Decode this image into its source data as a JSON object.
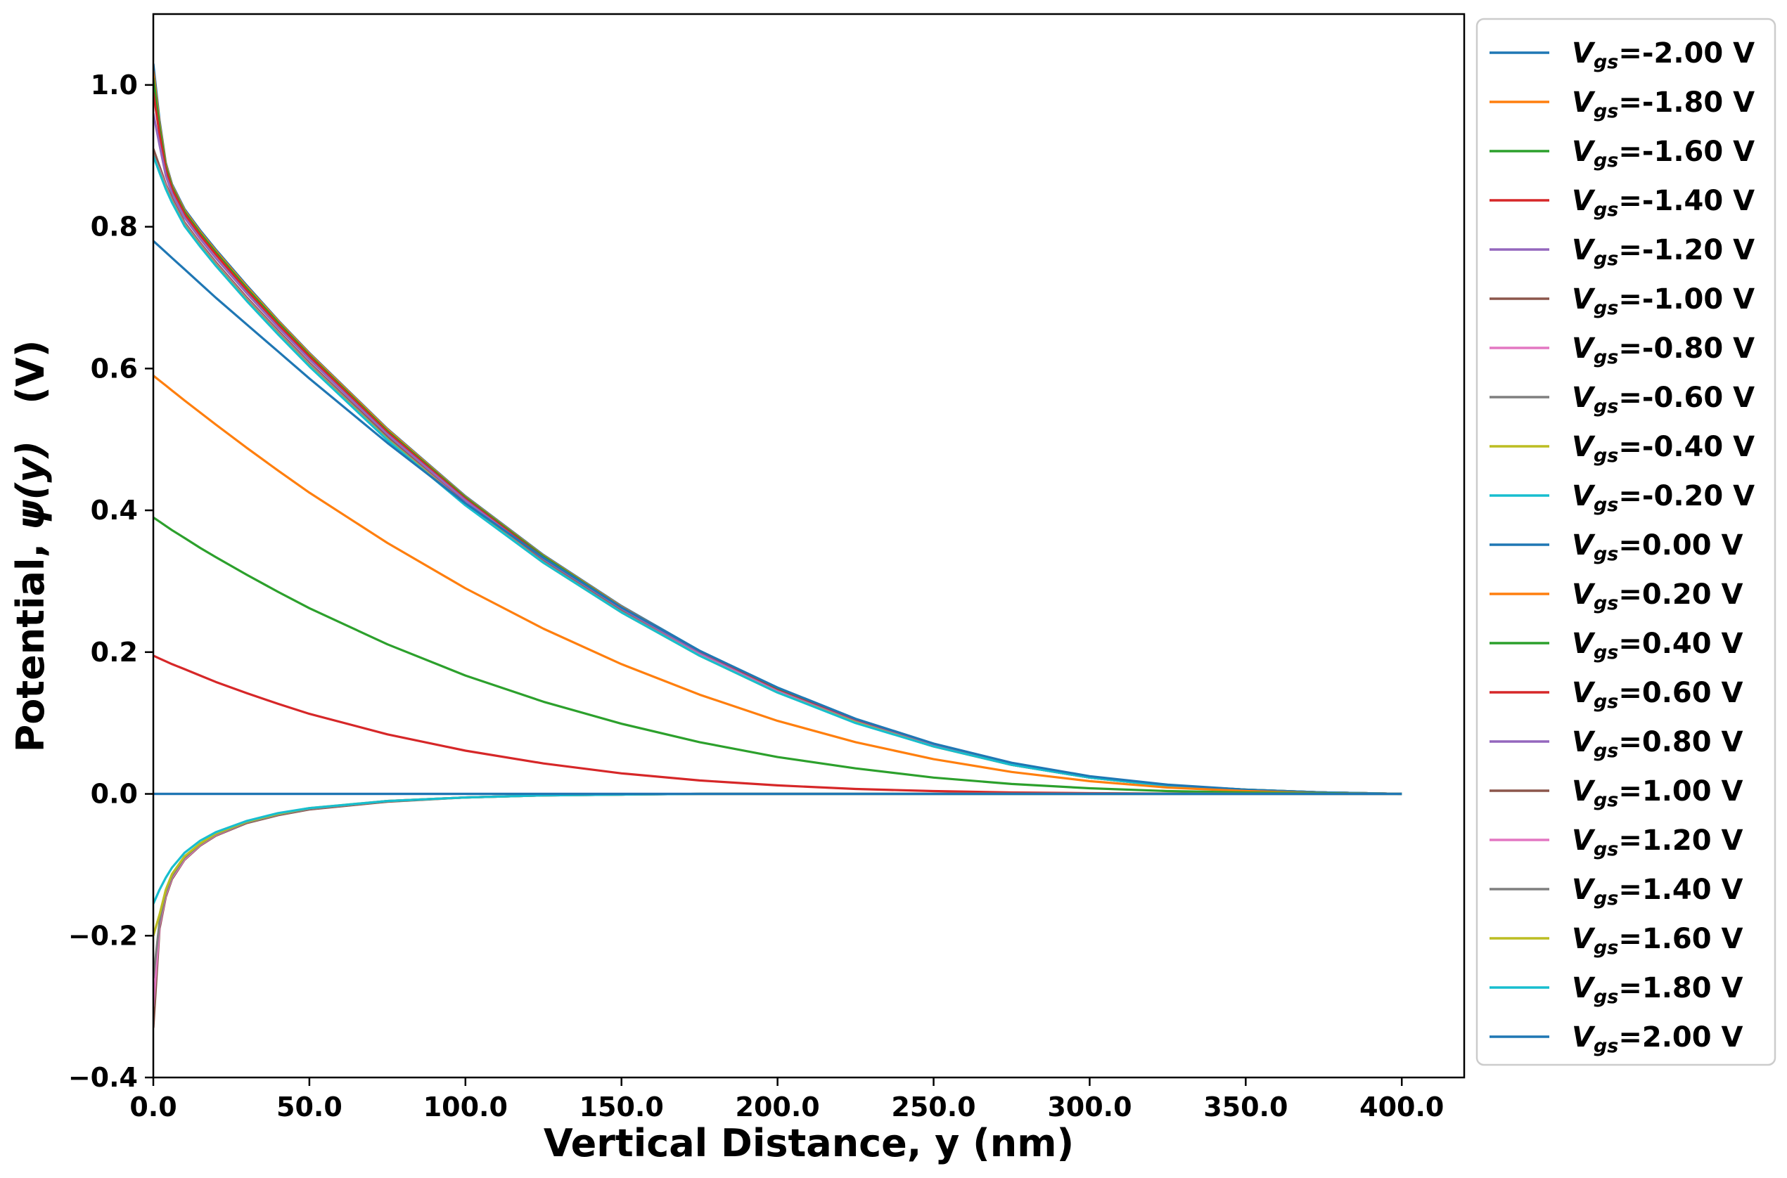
{
  "chart_data": {
    "type": "line",
    "title": "",
    "xlabel": "Vertical Distance, y (nm)",
    "ylabel_parts": {
      "prefix": "Potential, ",
      "symbol": "ψ(y)",
      "unit": "(V)"
    },
    "xlim": [
      0,
      420
    ],
    "ylim": [
      -0.4,
      1.1
    ],
    "x_ticks": [
      0,
      50,
      100,
      150,
      200,
      250,
      300,
      350,
      400
    ],
    "x_tick_labels": [
      "0.0",
      "50.0",
      "100.0",
      "150.0",
      "200.0",
      "250.0",
      "300.0",
      "350.0",
      "400.0"
    ],
    "y_ticks": [
      -0.4,
      -0.2,
      0.0,
      0.2,
      0.4,
      0.6,
      0.8,
      1.0
    ],
    "y_tick_labels": [
      "−0.4",
      "−0.2",
      "0.0",
      "0.2",
      "0.4",
      "0.6",
      "0.8",
      "1.0"
    ],
    "grid": false,
    "legend_position": "outside-right",
    "x": [
      0,
      2,
      4,
      6,
      10,
      15,
      20,
      30,
      40,
      50,
      75,
      100,
      125,
      150,
      175,
      200,
      225,
      250,
      275,
      300,
      325,
      350,
      375,
      400
    ],
    "series": [
      {
        "label_var": "V",
        "label_sub": "gs",
        "label_value": "=-2.00 V",
        "color": "#1f77b4",
        "values": [
          1.03,
          0.95,
          0.89,
          0.86,
          0.825,
          0.795,
          0.768,
          0.717,
          0.668,
          0.622,
          0.515,
          0.42,
          0.337,
          0.265,
          0.202,
          0.149,
          0.105,
          0.07,
          0.043,
          0.024,
          0.012,
          0.006,
          0.002,
          0.0
        ]
      },
      {
        "label_var": "V",
        "label_sub": "gs",
        "label_value": "=-1.80 V",
        "color": "#ff7f0e",
        "values": [
          1.02,
          0.945,
          0.888,
          0.858,
          0.823,
          0.793,
          0.766,
          0.715,
          0.667,
          0.621,
          0.514,
          0.419,
          0.336,
          0.264,
          0.201,
          0.148,
          0.104,
          0.069,
          0.042,
          0.024,
          0.012,
          0.006,
          0.002,
          0.0
        ]
      },
      {
        "label_var": "V",
        "label_sub": "gs",
        "label_value": "=-1.60 V",
        "color": "#2ca02c",
        "values": [
          1.01,
          0.94,
          0.885,
          0.856,
          0.821,
          0.791,
          0.764,
          0.713,
          0.665,
          0.619,
          0.512,
          0.418,
          0.335,
          0.263,
          0.2,
          0.147,
          0.103,
          0.069,
          0.042,
          0.024,
          0.012,
          0.006,
          0.002,
          0.0
        ]
      },
      {
        "label_var": "V",
        "label_sub": "gs",
        "label_value": "=-1.40 V",
        "color": "#d62728",
        "values": [
          0.99,
          0.93,
          0.88,
          0.853,
          0.818,
          0.788,
          0.761,
          0.71,
          0.662,
          0.617,
          0.51,
          0.416,
          0.333,
          0.262,
          0.199,
          0.146,
          0.103,
          0.068,
          0.042,
          0.023,
          0.012,
          0.005,
          0.002,
          0.0
        ]
      },
      {
        "label_var": "V",
        "label_sub": "gs",
        "label_value": "=-1.20 V",
        "color": "#9467bd",
        "values": [
          0.96,
          0.915,
          0.872,
          0.847,
          0.813,
          0.783,
          0.756,
          0.706,
          0.658,
          0.613,
          0.507,
          0.414,
          0.331,
          0.26,
          0.198,
          0.145,
          0.102,
          0.068,
          0.041,
          0.023,
          0.012,
          0.005,
          0.002,
          0.0
        ]
      },
      {
        "label_var": "V",
        "label_sub": "gs",
        "label_value": "=-1.00 V",
        "color": "#8c564b",
        "values": [
          0.91,
          0.885,
          0.86,
          0.84,
          0.806,
          0.777,
          0.75,
          0.7,
          0.653,
          0.608,
          0.503,
          0.41,
          0.328,
          0.258,
          0.196,
          0.144,
          0.101,
          0.067,
          0.041,
          0.023,
          0.011,
          0.005,
          0.002,
          0.0
        ]
      },
      {
        "label_var": "V",
        "label_sub": "gs",
        "label_value": "=-0.80 V",
        "color": "#e377c2",
        "values": [
          0.9,
          0.88,
          0.857,
          0.837,
          0.804,
          0.775,
          0.748,
          0.698,
          0.651,
          0.606,
          0.501,
          0.409,
          0.327,
          0.257,
          0.196,
          0.144,
          0.101,
          0.067,
          0.041,
          0.023,
          0.011,
          0.005,
          0.002,
          0.0
        ]
      },
      {
        "label_var": "V",
        "label_sub": "gs",
        "label_value": "=-0.60 V",
        "color": "#7f7f7f",
        "values": [
          0.9,
          0.878,
          0.855,
          0.836,
          0.803,
          0.774,
          0.747,
          0.697,
          0.65,
          0.605,
          0.501,
          0.408,
          0.327,
          0.257,
          0.195,
          0.143,
          0.101,
          0.067,
          0.041,
          0.023,
          0.011,
          0.005,
          0.002,
          0.0
        ]
      },
      {
        "label_var": "V",
        "label_sub": "gs",
        "label_value": "=-0.40 V",
        "color": "#bcbd22",
        "values": [
          0.9,
          0.877,
          0.854,
          0.835,
          0.802,
          0.773,
          0.746,
          0.696,
          0.649,
          0.604,
          0.5,
          0.408,
          0.326,
          0.256,
          0.195,
          0.143,
          0.101,
          0.067,
          0.041,
          0.023,
          0.011,
          0.005,
          0.002,
          0.0
        ]
      },
      {
        "label_var": "V",
        "label_sub": "gs",
        "label_value": "=-0.20 V",
        "color": "#17becf",
        "values": [
          0.9,
          0.876,
          0.853,
          0.834,
          0.801,
          0.772,
          0.745,
          0.695,
          0.648,
          0.603,
          0.499,
          0.407,
          0.326,
          0.256,
          0.195,
          0.143,
          0.1,
          0.067,
          0.041,
          0.023,
          0.011,
          0.005,
          0.002,
          0.0
        ]
      },
      {
        "label_var": "V",
        "label_sub": "gs",
        "label_value": "=0.00 V",
        "color": "#1f77b4",
        "values": [
          0.78,
          0.772,
          0.764,
          0.756,
          0.74,
          0.72,
          0.7,
          0.662,
          0.624,
          0.586,
          0.495,
          0.41,
          0.333,
          0.263,
          0.202,
          0.15,
          0.106,
          0.071,
          0.044,
          0.025,
          0.013,
          0.006,
          0.002,
          0.0
        ]
      },
      {
        "label_var": "V",
        "label_sub": "gs",
        "label_value": "=0.20 V",
        "color": "#ff7f0e",
        "values": [
          0.59,
          0.583,
          0.576,
          0.569,
          0.555,
          0.538,
          0.521,
          0.488,
          0.456,
          0.425,
          0.354,
          0.29,
          0.233,
          0.183,
          0.14,
          0.103,
          0.073,
          0.049,
          0.031,
          0.018,
          0.009,
          0.004,
          0.001,
          0.0
        ]
      },
      {
        "label_var": "V",
        "label_sub": "gs",
        "label_value": "=0.40 V",
        "color": "#2ca02c",
        "values": [
          0.39,
          0.384,
          0.378,
          0.372,
          0.361,
          0.347,
          0.334,
          0.309,
          0.285,
          0.262,
          0.211,
          0.167,
          0.13,
          0.099,
          0.073,
          0.052,
          0.036,
          0.023,
          0.014,
          0.008,
          0.004,
          0.002,
          0.001,
          0.0
        ]
      },
      {
        "label_var": "V",
        "label_sub": "gs",
        "label_value": "=0.60 V",
        "color": "#d62728",
        "values": [
          0.195,
          0.191,
          0.187,
          0.183,
          0.176,
          0.167,
          0.158,
          0.142,
          0.127,
          0.113,
          0.084,
          0.061,
          0.043,
          0.029,
          0.019,
          0.012,
          0.007,
          0.004,
          0.002,
          0.001,
          0.0005,
          0.0002,
          0.0001,
          0.0
        ]
      },
      {
        "label_var": "V",
        "label_sub": "gs",
        "label_value": "=0.80 V",
        "color": "#9467bd",
        "values": [
          0.0,
          0.0,
          0.0,
          0.0,
          0.0,
          0.0,
          0.0,
          0.0,
          0.0,
          0.0,
          0.0,
          0.0,
          0.0,
          0.0,
          0.0,
          0.0,
          0.0,
          0.0,
          0.0,
          0.0,
          0.0,
          0.0,
          0.0,
          0.0
        ]
      },
      {
        "label_var": "V",
        "label_sub": "gs",
        "label_value": "=1.00 V",
        "color": "#8c564b",
        "values": [
          -0.33,
          -0.19,
          -0.145,
          -0.12,
          -0.093,
          -0.073,
          -0.059,
          -0.041,
          -0.03,
          -0.022,
          -0.011,
          -0.005,
          -0.002,
          -0.001,
          0.0,
          0.0,
          0.0,
          0.0,
          0.0,
          0.0,
          0.0,
          0.0,
          0.0,
          0.0
        ]
      },
      {
        "label_var": "V",
        "label_sub": "gs",
        "label_value": "=1.20 V",
        "color": "#e377c2",
        "values": [
          -0.3,
          -0.185,
          -0.142,
          -0.118,
          -0.092,
          -0.072,
          -0.058,
          -0.04,
          -0.029,
          -0.021,
          -0.01,
          -0.005,
          -0.002,
          -0.001,
          0.0,
          0.0,
          0.0,
          0.0,
          0.0,
          0.0,
          0.0,
          0.0,
          0.0,
          0.0
        ]
      },
      {
        "label_var": "V",
        "label_sub": "gs",
        "label_value": "=1.40 V",
        "color": "#7f7f7f",
        "values": [
          -0.26,
          -0.18,
          -0.139,
          -0.116,
          -0.09,
          -0.071,
          -0.057,
          -0.04,
          -0.029,
          -0.021,
          -0.01,
          -0.005,
          -0.002,
          -0.001,
          0.0,
          0.0,
          0.0,
          0.0,
          0.0,
          0.0,
          0.0,
          0.0,
          0.0,
          0.0
        ]
      },
      {
        "label_var": "V",
        "label_sub": "gs",
        "label_value": "=1.60 V",
        "color": "#bcbd22",
        "values": [
          -0.2,
          -0.17,
          -0.135,
          -0.113,
          -0.088,
          -0.07,
          -0.056,
          -0.039,
          -0.028,
          -0.02,
          -0.01,
          -0.005,
          -0.002,
          -0.001,
          0.0,
          0.0,
          0.0,
          0.0,
          0.0,
          0.0,
          0.0,
          0.0,
          0.0,
          0.0
        ]
      },
      {
        "label_var": "V",
        "label_sub": "gs",
        "label_value": "=1.80 V",
        "color": "#17becf",
        "values": [
          -0.155,
          -0.135,
          -0.118,
          -0.104,
          -0.083,
          -0.066,
          -0.054,
          -0.038,
          -0.027,
          -0.02,
          -0.01,
          -0.005,
          -0.002,
          -0.001,
          0.0,
          0.0,
          0.0,
          0.0,
          0.0,
          0.0,
          0.0,
          0.0,
          0.0,
          0.0
        ]
      },
      {
        "label_var": "V",
        "label_sub": "gs",
        "label_value": "=2.00 V",
        "color": "#1f77b4",
        "values": [
          0.0,
          0.0,
          0.0,
          0.0,
          0.0,
          0.0,
          0.0,
          0.0,
          0.0,
          0.0,
          0.0,
          0.0,
          0.0,
          0.0,
          0.0,
          0.0,
          0.0,
          0.0,
          0.0,
          0.0,
          0.0,
          0.0,
          0.0,
          0.0
        ]
      }
    ]
  }
}
